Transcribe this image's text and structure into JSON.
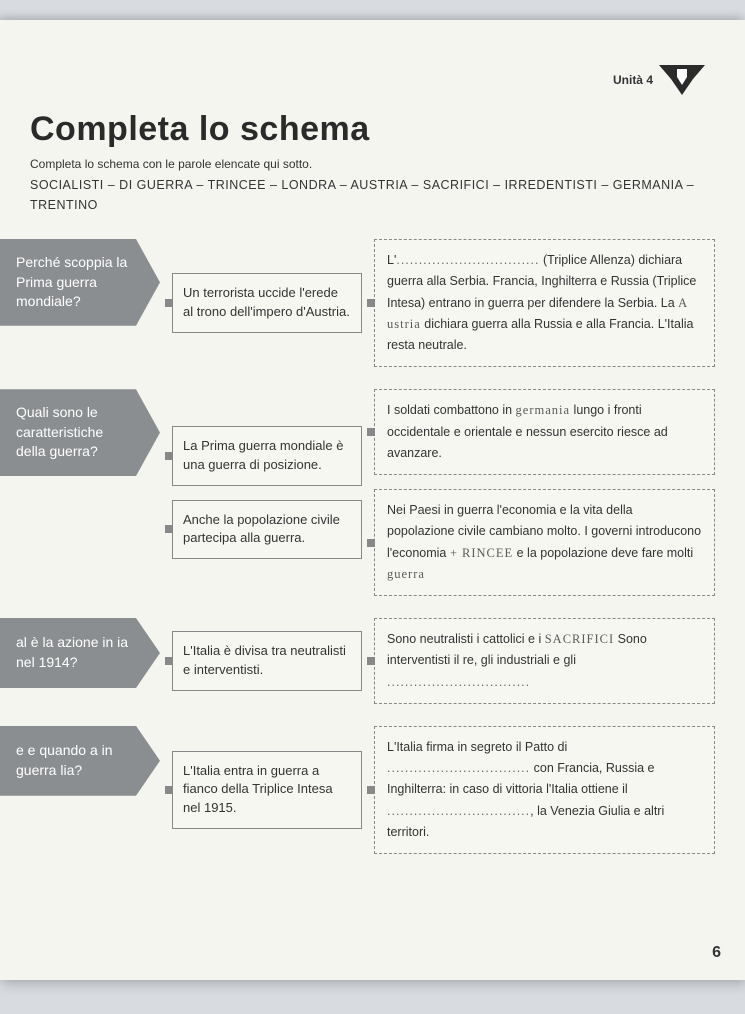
{
  "unit_label": "Unità 4",
  "title": "Completa lo schema",
  "instruction": "Completa lo schema con le parole elencate qui sotto.",
  "wordlist": "SOCIALISTI – DI GUERRA – TRINCEE – LONDRA – AUSTRIA – SACRIFICI – IRREDENTISTI – GERMANIA – TRENTINO",
  "rows": [
    {
      "q": "Perché scoppia la Prima guerra mondiale?",
      "mid": [
        "Un terrorista uccide l'erede al trono dell'impero d'Austria."
      ],
      "right": [
        {
          "segments": [
            {
              "t": "L'"
            },
            {
              "dots": "................................"
            },
            {
              "t": " (Triplice Allenza) dichiara guerra alla Serbia. Francia, Inghilterra e Russia (Triplice Intesa) entrano in guerra per difendere la Serbia. La "
            },
            {
              "hand": "A ustria"
            },
            {
              "t": " dichiara guerra alla Russia e alla Francia. L'Italia resta neutrale."
            }
          ]
        }
      ]
    },
    {
      "q": "Quali sono le caratteristiche della guerra?",
      "mid": [
        "La Prima guerra mondiale è una guerra di posizione.",
        "Anche la popolazione civile partecipa alla guerra."
      ],
      "right": [
        {
          "segments": [
            {
              "t": "I soldati combattono in "
            },
            {
              "hand": "germania"
            },
            {
              "t": " lungo i fronti occidentale e orientale e nessun esercito riesce ad avanzare."
            }
          ]
        },
        {
          "segments": [
            {
              "t": "Nei Paesi in guerra l'economia e la vita della popolazione civile cambiano molto. I governi introducono l'economia "
            },
            {
              "hand": "+ RINCEE"
            },
            {
              "t": " e la popolazione deve fare molti "
            },
            {
              "hand": "guerra"
            }
          ]
        }
      ]
    },
    {
      "q": "al è la azione in ia nel 1914?",
      "mid": [
        "L'Italia è divisa tra neutralisti e interventisti."
      ],
      "right": [
        {
          "segments": [
            {
              "t": "Sono neutralisti i cattolici e i "
            },
            {
              "hand": "SACRIFICI"
            },
            {
              "t": " Sono interventisti il re, gli industriali e gli "
            },
            {
              "dots": "................................"
            }
          ]
        }
      ]
    },
    {
      "q": "e e quando a in guerra lia?",
      "mid": [
        "L'Italia entra in guerra a fianco della Triplice Intesa nel 1915."
      ],
      "right": [
        {
          "segments": [
            {
              "t": "L'Italia firma in segreto il Patto di "
            },
            {
              "dots": "................................"
            },
            {
              "t": " con Francia, Russia e Inghilterra: in caso di vittoria l'Italia ottiene il "
            },
            {
              "dots": "................................"
            },
            {
              "t": ", la Venezia Giulia e altri territori."
            }
          ]
        }
      ]
    }
  ],
  "page_number": "6"
}
